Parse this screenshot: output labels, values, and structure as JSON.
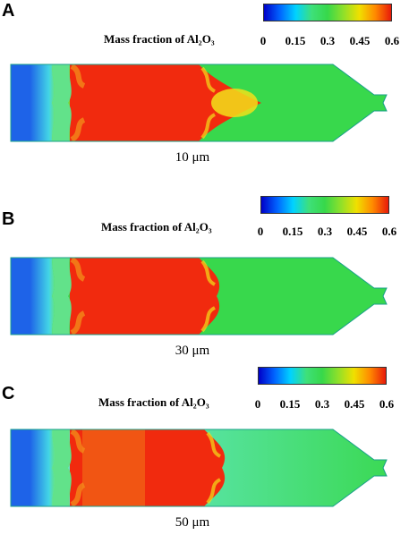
{
  "panels": [
    {
      "label": "A",
      "colorbar_title": "Mass fraction of Al₂O₃",
      "caption": "10 μm"
    },
    {
      "label": "B",
      "colorbar_title": "Mass fraction of Al₂O₃",
      "caption": "30 μm"
    },
    {
      "label": "C",
      "colorbar_title": "Mass fraction of Al₂O₃",
      "caption": "50 μm"
    }
  ],
  "colorbar": {
    "ticks": [
      "0",
      "0.15",
      "0.3",
      "0.45",
      "0.6"
    ],
    "colors": [
      "#0000c8",
      "#0064ff",
      "#00d2ff",
      "#3ee07a",
      "#37d84a",
      "#8fe02a",
      "#f0e000",
      "#ff8a00",
      "#e81a0a"
    ]
  },
  "field_colors": {
    "blue": "#1e63e8",
    "cyan": "#43d6e6",
    "red": "#f12a0e",
    "orange": "#f28a1a",
    "yellow": "#f2e01a",
    "green": "#38d84c",
    "light_green": "#62e28a",
    "aqua": "#66e8c8",
    "outline": "#1aa08a"
  }
}
